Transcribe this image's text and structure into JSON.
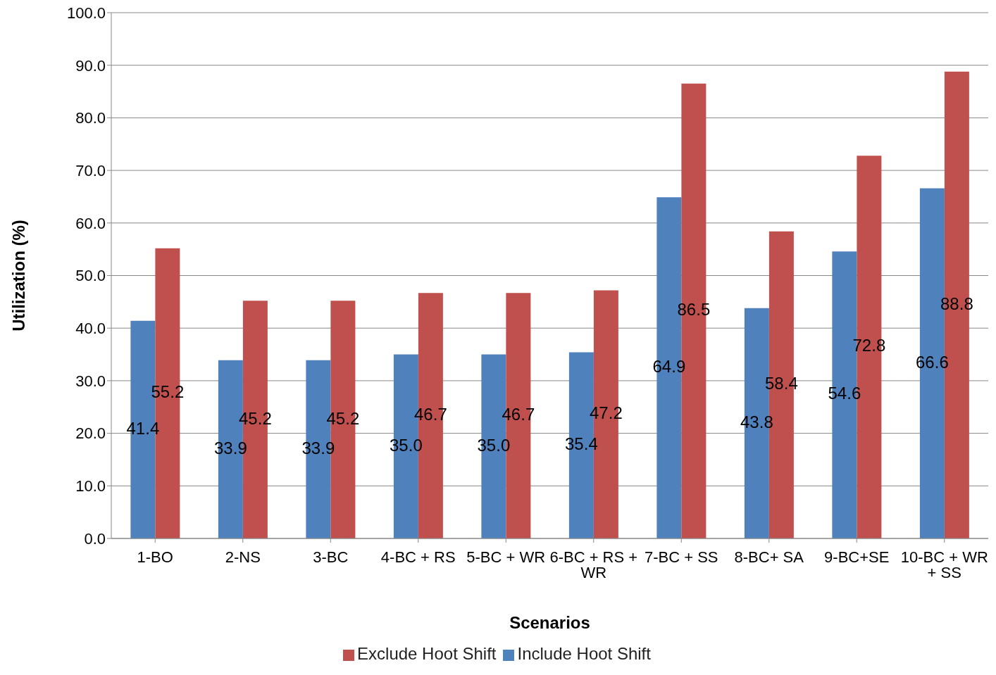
{
  "chart_data": {
    "type": "bar",
    "xlabel": "Scenarios",
    "ylabel": "Utilization (%)",
    "categories": [
      "1-BO",
      "2-NS",
      "3-BC",
      "4-BC + RS",
      "5-BC + WR",
      "6-BC + RS + WR",
      "7-BC + SS",
      "8-BC+ SA",
      "9-BC+SE",
      "10-BC + WR + SS"
    ],
    "series": [
      {
        "name": "Include Hoot Shift",
        "color": "#4f81bd",
        "values": [
          41.4,
          33.9,
          33.9,
          35.0,
          35.0,
          35.4,
          64.9,
          43.8,
          54.6,
          66.6
        ],
        "value_labels": [
          "41.4",
          "33.9",
          "33.9",
          "35.0",
          "35.0",
          "35.4",
          "64.9",
          "43.8",
          "54.6",
          "66.6"
        ]
      },
      {
        "name": "Exclude Hoot Shift",
        "color": "#c0504d",
        "values": [
          55.2,
          45.2,
          45.2,
          46.7,
          46.7,
          47.2,
          86.5,
          58.4,
          72.8,
          88.8
        ],
        "value_labels": [
          "55.2",
          "45.2",
          "45.2",
          "46.7",
          "46.7",
          "47.2",
          "86.5",
          "58.4",
          "72.8",
          "88.8"
        ]
      }
    ],
    "ylim": [
      0,
      100
    ],
    "yticks": [
      {
        "value": 0,
        "label": "0.0"
      },
      {
        "value": 10,
        "label": "10.0"
      },
      {
        "value": 20,
        "label": "20.0"
      },
      {
        "value": 30,
        "label": "30.0"
      },
      {
        "value": 40,
        "label": "40.0"
      },
      {
        "value": 50,
        "label": "50.0"
      },
      {
        "value": 60,
        "label": "60.0"
      },
      {
        "value": 70,
        "label": "70.0"
      },
      {
        "value": 80,
        "label": "80.0"
      },
      {
        "value": 90,
        "label": "90.0"
      },
      {
        "value": 100,
        "label": "100.0"
      }
    ],
    "grid": "y",
    "legend": "bottom"
  }
}
